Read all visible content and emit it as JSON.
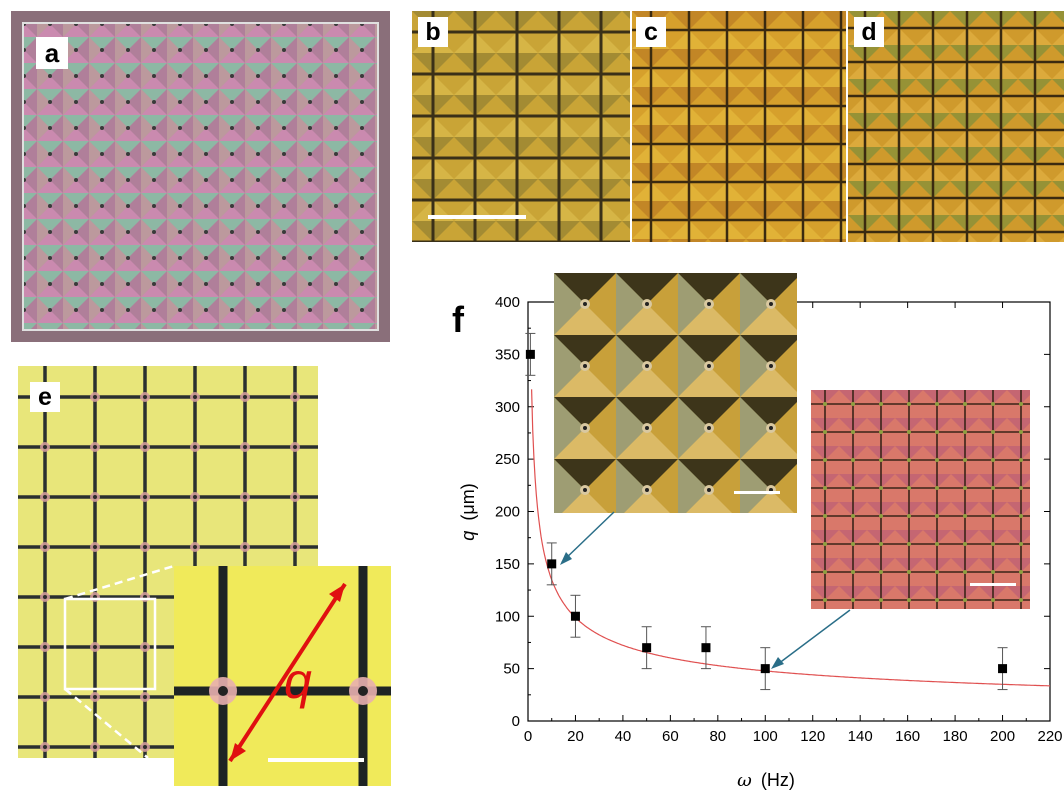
{
  "panels": {
    "a": {
      "label": "a"
    },
    "b": {
      "label": "b"
    },
    "c": {
      "label": "c"
    },
    "d": {
      "label": "d"
    },
    "e": {
      "label": "e"
    },
    "f": {
      "label": "f"
    }
  },
  "inset_q_label": "q",
  "colors": {
    "fit_curve": "#e05050",
    "marker": "#000000",
    "arrow": "#2a6e88",
    "q_arrow": "#e01010",
    "panel_a_bg": "#b48aa0",
    "panel_bcd_bg": "#d8a830",
    "panel_e_bg": "#e6e878",
    "inset_right_bg": "#d9786a"
  },
  "chart_data": {
    "type": "scatter",
    "xlabel_symbol": "ω",
    "xlabel_unit": "(Hz)",
    "ylabel_symbol": "q",
    "ylabel_unit": "(μm)",
    "xlim": [
      0,
      220
    ],
    "ylim": [
      0,
      400
    ],
    "xticks": [
      0,
      20,
      40,
      60,
      80,
      100,
      120,
      140,
      160,
      180,
      200,
      220
    ],
    "yticks": [
      0,
      50,
      100,
      150,
      200,
      250,
      300,
      350,
      400
    ],
    "points": [
      {
        "x": 1,
        "y": 350,
        "err": 20
      },
      {
        "x": 10,
        "y": 150,
        "err": 20
      },
      {
        "x": 20,
        "y": 100,
        "err": 20
      },
      {
        "x": 50,
        "y": 70,
        "err": 20
      },
      {
        "x": 75,
        "y": 70,
        "err": 20
      },
      {
        "x": 100,
        "y": 50,
        "err": 20
      },
      {
        "x": 200,
        "y": 50,
        "err": 20
      }
    ],
    "fit": {
      "form": "a / x^b",
      "a": 380,
      "b": 0.45
    },
    "grid": false
  }
}
